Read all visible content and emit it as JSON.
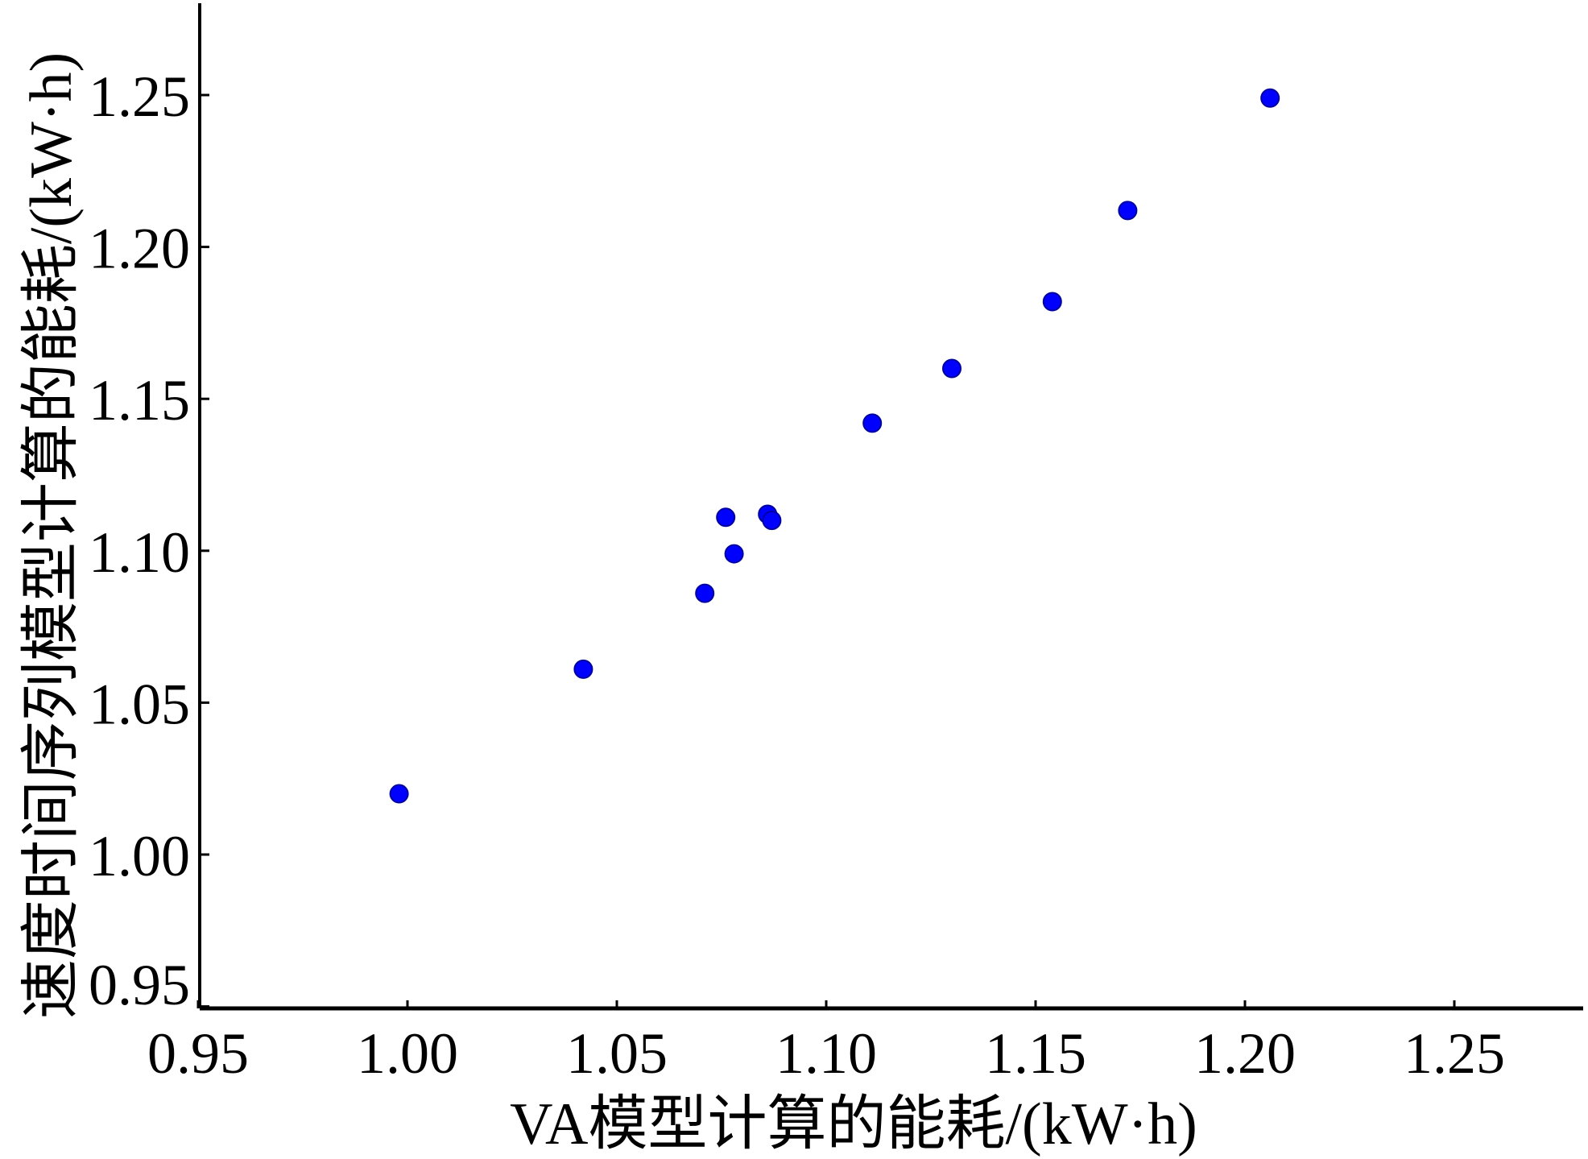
{
  "chart_data": {
    "type": "scatter",
    "xlabel": "VA模型计算的能耗/(kW·h)",
    "ylabel": "速度时间序列模型计算的能耗/(kW·h)",
    "xlim": [
      0.95,
      1.28
    ],
    "ylim": [
      0.95,
      1.28
    ],
    "x_ticks": [
      "0.95",
      "1.00",
      "1.05",
      "1.10",
      "1.15",
      "1.20",
      "1.25"
    ],
    "y_ticks": [
      "0.95",
      "1.00",
      "1.05",
      "1.10",
      "1.15",
      "1.20",
      "1.25"
    ],
    "grid": false,
    "marker_color": "#0000ff",
    "points": [
      {
        "x": 0.998,
        "y": 1.02
      },
      {
        "x": 1.042,
        "y": 1.061
      },
      {
        "x": 1.071,
        "y": 1.086
      },
      {
        "x": 1.076,
        "y": 1.111
      },
      {
        "x": 1.078,
        "y": 1.099
      },
      {
        "x": 1.086,
        "y": 1.112
      },
      {
        "x": 1.087,
        "y": 1.11
      },
      {
        "x": 1.111,
        "y": 1.142
      },
      {
        "x": 1.13,
        "y": 1.16
      },
      {
        "x": 1.154,
        "y": 1.182
      },
      {
        "x": 1.172,
        "y": 1.212
      },
      {
        "x": 1.206,
        "y": 1.249
      }
    ]
  }
}
